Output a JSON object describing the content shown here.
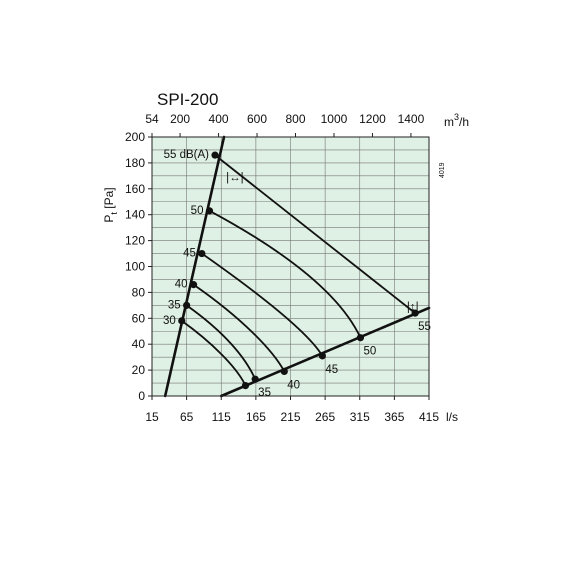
{
  "chart_data": {
    "type": "line",
    "title": "SPI-200",
    "code": "4019",
    "x_bottom": {
      "label": "l/s",
      "ticks": [
        "15",
        "65",
        "115",
        "165",
        "215",
        "265",
        "315",
        "365",
        "415"
      ],
      "range": [
        15,
        415
      ]
    },
    "x_top": {
      "unit_main": "m",
      "unit_sup": "3",
      "unit_tail": "/h",
      "ticks": [
        "54",
        "200",
        "400",
        "600",
        "800",
        "1000",
        "1200",
        "1400"
      ]
    },
    "y": {
      "label_main": "P",
      "label_sub": "t",
      "label_tail": " [Pa]",
      "ticks": [
        "0",
        "20",
        "40",
        "60",
        "80",
        "100",
        "120",
        "140",
        "160",
        "180",
        "200"
      ],
      "range": [
        0,
        200
      ]
    },
    "grid": true,
    "background_color": "#dff0e4",
    "open_curve_xy": [
      [
        34,
        0
      ],
      [
        119,
        200
      ]
    ],
    "closed_curve_xy": [
      [
        115,
        0
      ],
      [
        415,
        68
      ]
    ],
    "series": [
      {
        "name": "30",
        "points": [
          [
            58,
            58
          ],
          [
            100,
            42
          ],
          [
            138,
            22
          ],
          [
            150,
            8
          ]
        ]
      },
      {
        "name": "35",
        "points": [
          [
            65,
            70
          ],
          [
            118,
            50
          ],
          [
            150,
            30
          ],
          [
            164,
            13
          ]
        ]
      },
      {
        "name": "40",
        "points": [
          [
            75,
            86
          ],
          [
            145,
            60
          ],
          [
            190,
            35
          ],
          [
            206,
            19
          ]
        ]
      },
      {
        "name": "45",
        "points": [
          [
            87,
            110
          ],
          [
            175,
            77
          ],
          [
            242,
            48
          ],
          [
            261,
            31
          ]
        ]
      },
      {
        "name": "50",
        "points": [
          [
            98,
            143
          ],
          [
            220,
            108
          ],
          [
            290,
            75
          ],
          [
            316,
            45
          ]
        ]
      },
      {
        "name": "55",
        "points": [
          [
            106,
            186
          ],
          [
            395,
            64
          ]
        ]
      }
    ],
    "labels": {
      "lp_left": [
        "30",
        "35",
        "40",
        "45",
        "50",
        "55 dB(A)"
      ],
      "lp_bottom": [
        "35",
        "40",
        "45",
        "50",
        "55"
      ]
    },
    "symbols": {
      "open": "|↔|",
      "closed": "|↕|"
    },
    "colors": {
      "grid": "#777777",
      "curve": "#111111",
      "background": "#dff0e4"
    }
  }
}
